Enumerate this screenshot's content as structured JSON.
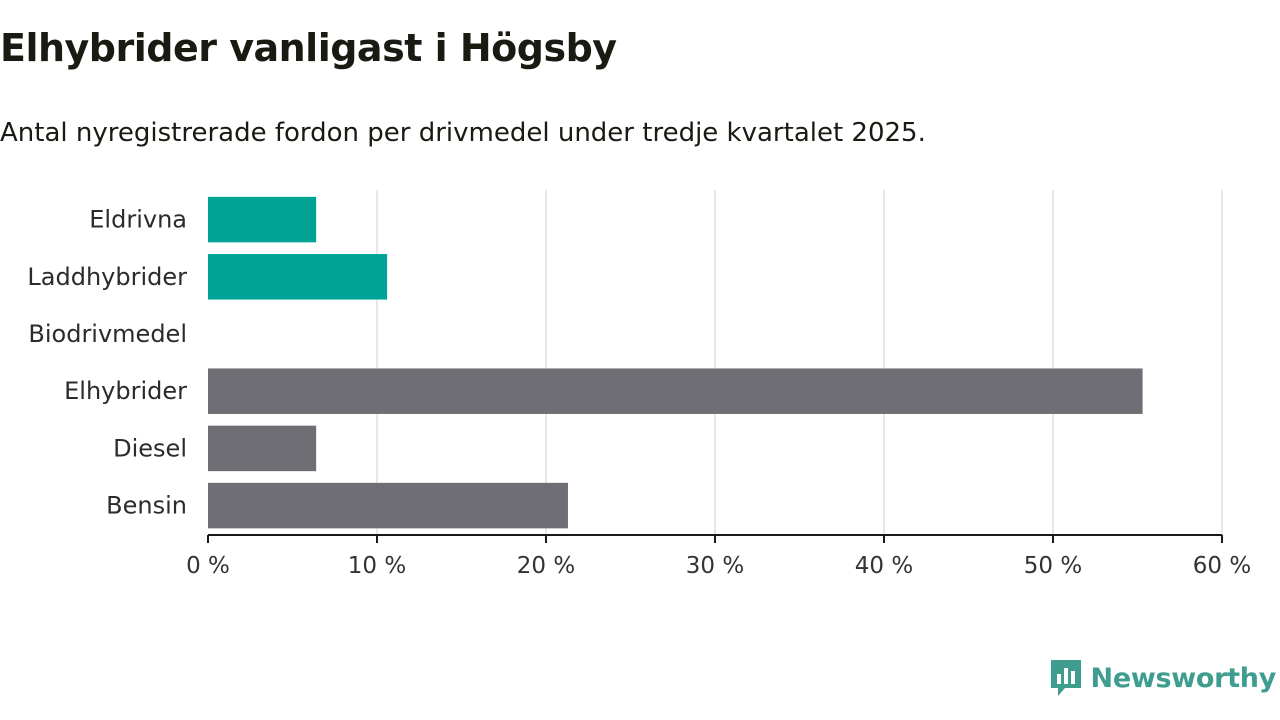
{
  "header": {
    "title": "Elhybrider vanligast i Högsby",
    "subtitle": "Antal nyregistrerade fordon per drivmedel under tredje kvartalet 2025."
  },
  "brand": {
    "name": "Newsworthy",
    "color": "#3f9d8f"
  },
  "colors": {
    "highlight": "#00a396",
    "default": "#6f6e74",
    "grid": "#d9d9d9",
    "axis": "#1a1a1a"
  },
  "chart_data": {
    "type": "bar",
    "orientation": "horizontal",
    "title": "Elhybrider vanligast i Högsby",
    "subtitle": "Antal nyregistrerade fordon per drivmedel under tredje kvartalet 2025.",
    "categories": [
      "Eldrivna",
      "Laddhybrider",
      "Biodrivmedel",
      "Elhybrider",
      "Diesel",
      "Bensin"
    ],
    "values": [
      6.4,
      10.6,
      0,
      55.3,
      6.4,
      21.3
    ],
    "highlighted": [
      true,
      true,
      false,
      false,
      false,
      false
    ],
    "xlabel": "",
    "ylabel": "",
    "xlim": [
      0,
      60
    ],
    "xticks": [
      0,
      10,
      20,
      30,
      40,
      50,
      60
    ],
    "xtick_labels": [
      "0 %",
      "10 %",
      "20 %",
      "30 %",
      "40 %",
      "50 %",
      "60 %"
    ],
    "unit": "%",
    "grid": true,
    "legend": "none"
  }
}
